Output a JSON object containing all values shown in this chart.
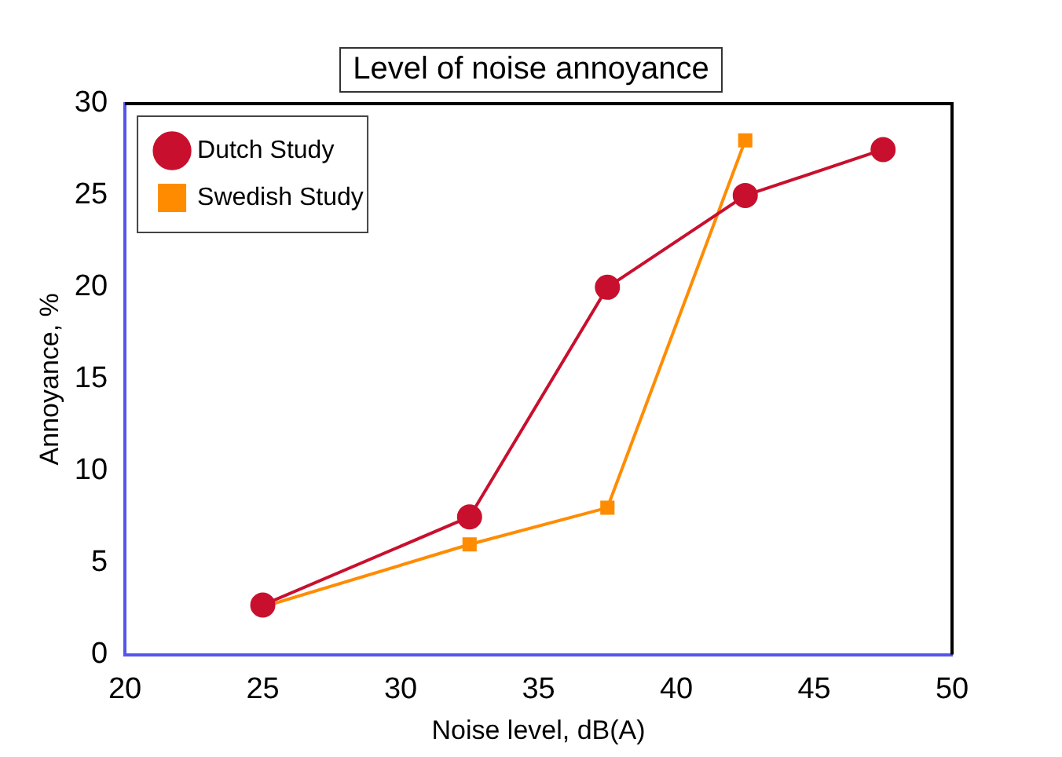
{
  "chart_data": {
    "type": "line",
    "title": "Level of noise annoyance",
    "xlabel": "Noise level, dB(A)",
    "ylabel": "Annoyance, %",
    "xlim": [
      20,
      50
    ],
    "xticks": [
      20,
      25,
      30,
      35,
      40,
      45,
      50
    ],
    "ylim": [
      0,
      30
    ],
    "yticks": [
      0,
      5,
      10,
      15,
      20,
      25,
      30
    ],
    "grid": false,
    "legend": "top left",
    "line_style": "solid",
    "series": [
      {
        "name": "Dutch Study",
        "color": "#c8102e",
        "marker": "circle",
        "x": [
          25,
          32.5,
          37.5,
          42.5,
          47.5
        ],
        "values": [
          2.7,
          7.5,
          20,
          25,
          27.5
        ]
      },
      {
        "name": "Swedish Study",
        "color": "#ff8c00",
        "marker": "square",
        "x": [
          25,
          32.5,
          37.5,
          42.5
        ],
        "values": [
          2.6,
          6,
          8,
          28
        ]
      }
    ]
  }
}
